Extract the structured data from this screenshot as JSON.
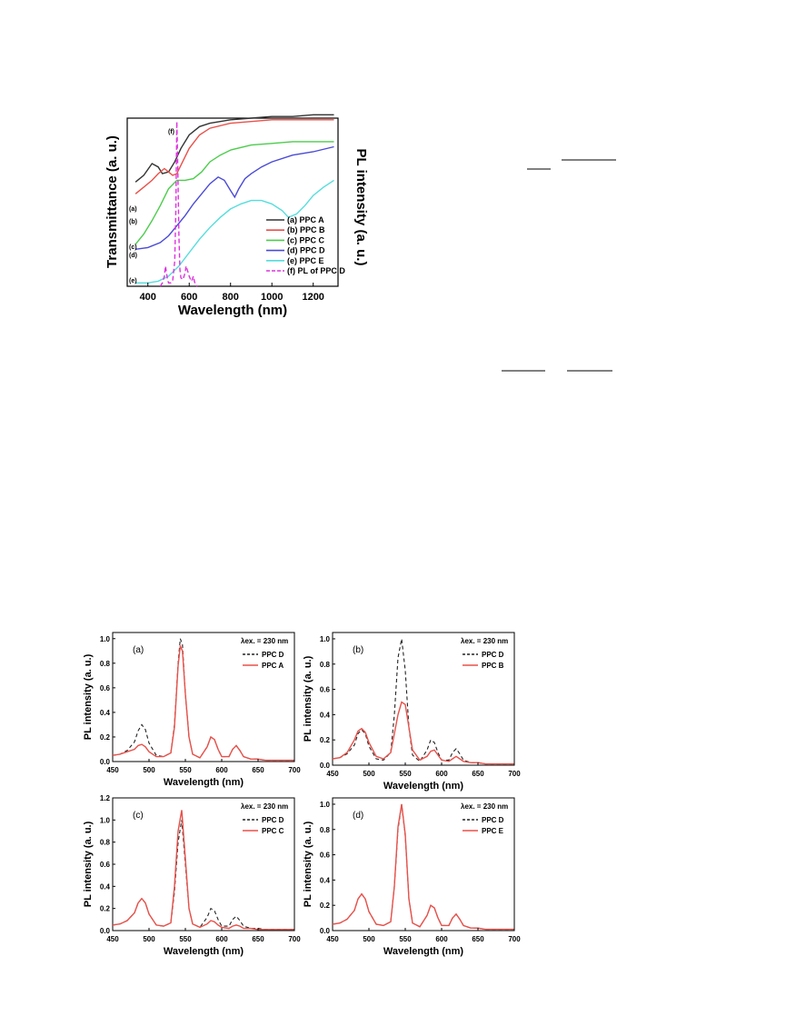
{
  "chart_data": [
    {
      "id": "top",
      "type": "line",
      "xlabel": "Wavelength (nm)",
      "ylabel_left": "Transmittance (a. u.)",
      "ylabel_right": "PL intensity (a. u.)",
      "xlim": [
        300,
        1320
      ],
      "ylim": [
        0,
        1
      ],
      "xticks": [
        400,
        600,
        800,
        1000,
        1200
      ],
      "yticks_shown": false,
      "legend_position": "lower-right",
      "series": [
        {
          "name": "(a) PPC A",
          "tag": "(a)",
          "color": "#333333",
          "dash": "",
          "x": [
            340,
            380,
            420,
            450,
            470,
            500,
            530,
            560,
            600,
            650,
            700,
            800,
            900,
            1000,
            1100,
            1200,
            1300
          ],
          "y": [
            0.62,
            0.66,
            0.73,
            0.71,
            0.67,
            0.68,
            0.74,
            0.82,
            0.9,
            0.95,
            0.97,
            0.99,
            1.0,
            1.01,
            1.01,
            1.02,
            1.02
          ]
        },
        {
          "name": "(b) PPC B",
          "tag": "(b)",
          "color": "#e8514a",
          "dash": "",
          "x": [
            340,
            380,
            420,
            450,
            480,
            500,
            520,
            540,
            560,
            600,
            650,
            700,
            800,
            900,
            1000,
            1100,
            1200,
            1300
          ],
          "y": [
            0.55,
            0.59,
            0.63,
            0.67,
            0.7,
            0.68,
            0.66,
            0.67,
            0.72,
            0.82,
            0.9,
            0.94,
            0.97,
            0.98,
            0.99,
            0.99,
            0.99,
            0.99
          ]
        },
        {
          "name": "(c) PPC C",
          "tag": "(c)",
          "color": "#4ccc4c",
          "dash": "",
          "x": [
            340,
            380,
            420,
            460,
            500,
            540,
            580,
            620,
            660,
            700,
            750,
            800,
            900,
            1000,
            1100,
            1200,
            1300
          ],
          "y": [
            0.25,
            0.31,
            0.39,
            0.48,
            0.58,
            0.63,
            0.63,
            0.64,
            0.68,
            0.74,
            0.78,
            0.81,
            0.84,
            0.85,
            0.86,
            0.86,
            0.86
          ]
        },
        {
          "name": "(d) PPC D",
          "tag": "(d)",
          "color": "#4a4ad6",
          "dash": "",
          "x": [
            340,
            400,
            460,
            500,
            540,
            580,
            620,
            660,
            700,
            740,
            770,
            800,
            820,
            840,
            870,
            900,
            950,
            1000,
            1100,
            1200,
            1300
          ],
          "y": [
            0.22,
            0.23,
            0.26,
            0.3,
            0.36,
            0.42,
            0.49,
            0.55,
            0.61,
            0.65,
            0.63,
            0.57,
            0.53,
            0.58,
            0.64,
            0.67,
            0.71,
            0.74,
            0.78,
            0.8,
            0.83
          ]
        },
        {
          "name": "(e) PPC E",
          "tag": "(e)",
          "color": "#55dddd",
          "dash": "",
          "x": [
            340,
            400,
            450,
            500,
            550,
            600,
            650,
            700,
            750,
            800,
            850,
            900,
            950,
            1000,
            1050,
            1080,
            1120,
            1160,
            1200,
            1250,
            1300
          ],
          "y": [
            0.02,
            0.02,
            0.03,
            0.06,
            0.12,
            0.2,
            0.28,
            0.35,
            0.41,
            0.46,
            0.49,
            0.51,
            0.51,
            0.49,
            0.45,
            0.41,
            0.43,
            0.48,
            0.54,
            0.59,
            0.63
          ]
        },
        {
          "name": "(f) PL of PPC D",
          "tag": "(f)",
          "color": "#dd33dd",
          "dash": "5,3",
          "x": [
            460,
            470,
            480,
            485,
            490,
            495,
            500,
            510,
            520,
            530,
            535,
            540,
            545,
            550,
            555,
            560,
            570,
            580,
            585,
            590,
            600,
            610,
            615,
            620,
            625,
            630,
            640
          ],
          "y": [
            0.0,
            0.02,
            0.06,
            0.12,
            0.08,
            0.04,
            0.02,
            0.02,
            0.03,
            0.15,
            0.45,
            0.98,
            0.7,
            0.3,
            0.1,
            0.05,
            0.04,
            0.08,
            0.12,
            0.1,
            0.06,
            0.03,
            0.04,
            0.06,
            0.03,
            0.01,
            0.0
          ]
        }
      ]
    },
    {
      "id": "a",
      "panel": "(a)",
      "type": "line",
      "xlabel": "Wavelength (nm)",
      "ylabel": "PL intensity (a. u.)",
      "xlim": [
        450,
        700
      ],
      "ylim": [
        0,
        1.05
      ],
      "xticks": [
        450,
        500,
        550,
        600,
        650,
        700
      ],
      "yticks": [
        0.0,
        0.2,
        0.4,
        0.6,
        0.8,
        1.0
      ],
      "excitation_label": "λex. = 230 nm",
      "series": [
        {
          "name": "PPC D",
          "color": "#222222",
          "dash": "4,3",
          "x": [
            450,
            460,
            470,
            480,
            485,
            490,
            495,
            500,
            510,
            520,
            530,
            535,
            540,
            543,
            546,
            550,
            555,
            560,
            570,
            580,
            585,
            590,
            595,
            600,
            610,
            615,
            620,
            625,
            630,
            640,
            650,
            660,
            680,
            700
          ],
          "y": [
            0.05,
            0.06,
            0.09,
            0.16,
            0.25,
            0.3,
            0.26,
            0.15,
            0.05,
            0.04,
            0.07,
            0.3,
            0.8,
            1.0,
            0.95,
            0.55,
            0.2,
            0.06,
            0.03,
            0.12,
            0.2,
            0.18,
            0.1,
            0.04,
            0.04,
            0.1,
            0.13,
            0.09,
            0.04,
            0.02,
            0.02,
            0.01,
            0.01,
            0.01
          ]
        },
        {
          "name": "PPC A",
          "color": "#e8514a",
          "dash": "",
          "x": [
            450,
            460,
            470,
            480,
            485,
            490,
            495,
            500,
            510,
            520,
            530,
            535,
            540,
            543,
            546,
            550,
            555,
            560,
            570,
            580,
            585,
            590,
            595,
            600,
            610,
            615,
            620,
            625,
            630,
            640,
            650,
            660,
            680,
            700
          ],
          "y": [
            0.05,
            0.06,
            0.08,
            0.1,
            0.13,
            0.14,
            0.12,
            0.08,
            0.04,
            0.04,
            0.07,
            0.28,
            0.78,
            0.94,
            0.9,
            0.55,
            0.2,
            0.06,
            0.03,
            0.12,
            0.2,
            0.18,
            0.1,
            0.04,
            0.04,
            0.1,
            0.13,
            0.09,
            0.04,
            0.02,
            0.02,
            0.01,
            0.01,
            0.01
          ]
        }
      ]
    },
    {
      "id": "b",
      "panel": "(b)",
      "type": "line",
      "xlabel": "Wavelength (nm)",
      "ylabel": "PL intensity (a. u.)",
      "xlim": [
        450,
        700
      ],
      "ylim": [
        0,
        1.05
      ],
      "xticks": [
        450,
        500,
        550,
        600,
        650,
        700
      ],
      "yticks": [
        0.0,
        0.2,
        0.4,
        0.6,
        0.8,
        1.0
      ],
      "excitation_label": "λex. = 230 nm",
      "series": [
        {
          "name": "PPC D",
          "color": "#222222",
          "dash": "4,3",
          "x": [
            450,
            460,
            470,
            480,
            485,
            490,
            495,
            500,
            510,
            520,
            530,
            535,
            540,
            545,
            550,
            555,
            560,
            570,
            580,
            585,
            590,
            595,
            600,
            610,
            615,
            620,
            625,
            630,
            640,
            650,
            660,
            680,
            700
          ],
          "y": [
            0.05,
            0.06,
            0.09,
            0.16,
            0.25,
            0.28,
            0.25,
            0.15,
            0.05,
            0.04,
            0.1,
            0.4,
            0.85,
            1.0,
            0.75,
            0.3,
            0.08,
            0.03,
            0.12,
            0.2,
            0.18,
            0.1,
            0.04,
            0.04,
            0.1,
            0.13,
            0.09,
            0.04,
            0.02,
            0.02,
            0.01,
            0.01,
            0.01
          ]
        },
        {
          "name": "PPC B",
          "color": "#e8514a",
          "dash": "",
          "x": [
            450,
            460,
            470,
            480,
            485,
            490,
            495,
            500,
            510,
            520,
            530,
            535,
            540,
            545,
            550,
            555,
            560,
            570,
            580,
            585,
            590,
            595,
            600,
            610,
            615,
            620,
            625,
            630,
            640,
            650,
            660,
            680,
            700
          ],
          "y": [
            0.05,
            0.06,
            0.1,
            0.2,
            0.27,
            0.29,
            0.26,
            0.18,
            0.07,
            0.05,
            0.1,
            0.25,
            0.4,
            0.5,
            0.48,
            0.3,
            0.12,
            0.04,
            0.07,
            0.11,
            0.12,
            0.08,
            0.04,
            0.03,
            0.05,
            0.07,
            0.05,
            0.03,
            0.02,
            0.02,
            0.01,
            0.01,
            0.01
          ]
        }
      ]
    },
    {
      "id": "c",
      "panel": "(c)",
      "type": "line",
      "xlabel": "Wavelength (nm)",
      "ylabel": "PL intensity (a. u.)",
      "xlim": [
        450,
        700
      ],
      "ylim": [
        0,
        1.2
      ],
      "xticks": [
        450,
        500,
        550,
        600,
        650,
        700
      ],
      "yticks": [
        0.0,
        0.2,
        0.4,
        0.6,
        0.8,
        1.0,
        1.2
      ],
      "excitation_label": "λex. = 230 nm",
      "series": [
        {
          "name": "PPC D",
          "color": "#222222",
          "dash": "4,3",
          "x": [
            450,
            460,
            470,
            480,
            485,
            490,
            495,
            500,
            510,
            520,
            530,
            535,
            540,
            545,
            550,
            555,
            560,
            570,
            580,
            585,
            590,
            595,
            600,
            610,
            615,
            620,
            625,
            630,
            640,
            650,
            660,
            680,
            700
          ],
          "y": [
            0.05,
            0.06,
            0.09,
            0.16,
            0.25,
            0.29,
            0.25,
            0.15,
            0.05,
            0.04,
            0.07,
            0.35,
            0.8,
            1.0,
            0.6,
            0.2,
            0.06,
            0.03,
            0.12,
            0.2,
            0.18,
            0.1,
            0.04,
            0.04,
            0.1,
            0.13,
            0.09,
            0.04,
            0.02,
            0.02,
            0.01,
            0.01,
            0.01
          ]
        },
        {
          "name": "PPC C",
          "color": "#e8514a",
          "dash": "",
          "x": [
            450,
            460,
            470,
            480,
            485,
            490,
            495,
            500,
            510,
            520,
            530,
            535,
            540,
            545,
            550,
            555,
            560,
            570,
            580,
            585,
            590,
            595,
            600,
            610,
            615,
            620,
            625,
            630,
            640,
            650,
            660,
            680,
            700
          ],
          "y": [
            0.05,
            0.06,
            0.09,
            0.16,
            0.25,
            0.29,
            0.25,
            0.15,
            0.05,
            0.04,
            0.07,
            0.4,
            0.9,
            1.09,
            0.65,
            0.2,
            0.06,
            0.03,
            0.06,
            0.09,
            0.08,
            0.05,
            0.03,
            0.02,
            0.04,
            0.05,
            0.04,
            0.02,
            0.02,
            0.01,
            0.01,
            0.01,
            0.01
          ]
        }
      ]
    },
    {
      "id": "d",
      "panel": "(d)",
      "type": "line",
      "xlabel": "Wavelength (nm)",
      "ylabel": "PL intensity (a. u.)",
      "xlim": [
        450,
        700
      ],
      "ylim": [
        0,
        1.05
      ],
      "xticks": [
        450,
        500,
        550,
        600,
        650,
        700
      ],
      "yticks": [
        0.0,
        0.2,
        0.4,
        0.6,
        0.8,
        1.0
      ],
      "excitation_label": "λex. = 230 nm",
      "series": [
        {
          "name": "PPC D",
          "color": "#222222",
          "dash": "4,3",
          "x": [
            450,
            460,
            470,
            480,
            485,
            490,
            495,
            500,
            510,
            520,
            530,
            535,
            540,
            545,
            550,
            555,
            560,
            570,
            580,
            585,
            590,
            595,
            600,
            610,
            615,
            620,
            625,
            630,
            640,
            650,
            660,
            680,
            700
          ],
          "y": [
            0.05,
            0.06,
            0.09,
            0.16,
            0.25,
            0.29,
            0.25,
            0.15,
            0.05,
            0.04,
            0.07,
            0.35,
            0.8,
            1.0,
            0.75,
            0.25,
            0.06,
            0.03,
            0.12,
            0.2,
            0.18,
            0.1,
            0.04,
            0.04,
            0.1,
            0.13,
            0.09,
            0.04,
            0.02,
            0.02,
            0.01,
            0.01,
            0.01
          ]
        },
        {
          "name": "PPC E",
          "color": "#e8514a",
          "dash": "",
          "x": [
            450,
            460,
            470,
            480,
            485,
            490,
            495,
            500,
            510,
            520,
            530,
            535,
            540,
            545,
            550,
            555,
            560,
            570,
            580,
            585,
            590,
            595,
            600,
            610,
            615,
            620,
            625,
            630,
            640,
            650,
            660,
            680,
            700
          ],
          "y": [
            0.05,
            0.06,
            0.09,
            0.16,
            0.25,
            0.29,
            0.25,
            0.15,
            0.05,
            0.04,
            0.07,
            0.35,
            0.82,
            1.0,
            0.76,
            0.25,
            0.06,
            0.03,
            0.12,
            0.2,
            0.18,
            0.1,
            0.04,
            0.04,
            0.1,
            0.13,
            0.09,
            0.04,
            0.02,
            0.02,
            0.01,
            0.01,
            0.01
          ]
        }
      ]
    }
  ]
}
